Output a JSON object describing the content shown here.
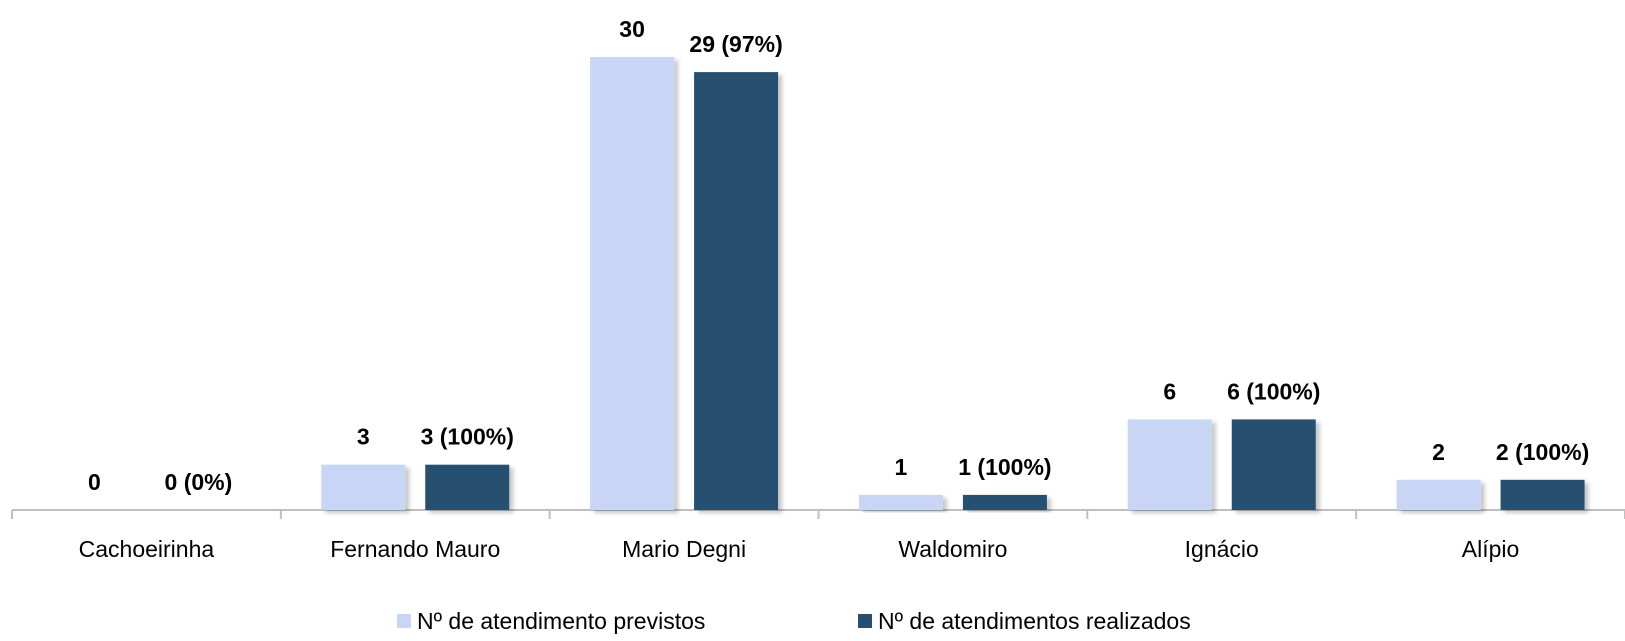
{
  "chart_data": {
    "type": "bar",
    "categories": [
      "Cachoeirinha",
      "Fernando Mauro",
      "Mario Degni",
      "Waldomiro",
      "Ignácio",
      "Alípio"
    ],
    "series": [
      {
        "name": "Nº de atendimento previstos",
        "values": [
          0,
          3,
          30,
          1,
          6,
          2
        ],
        "labels": [
          "0",
          "3",
          "30",
          "1",
          "6",
          "2"
        ],
        "color": "#c9d5f5"
      },
      {
        "name": "Nº de atendimentos realizados",
        "values": [
          0,
          3,
          29,
          1,
          6,
          2
        ],
        "labels": [
          "0 (0%)",
          "3 (100%)",
          "29 (97%)",
          "1 (100%)",
          "6 (100%)",
          "2 (100%)"
        ],
        "color": "#284f70"
      }
    ],
    "ylim": [
      0,
      30
    ],
    "grid": false,
    "legend_position": "bottom"
  }
}
